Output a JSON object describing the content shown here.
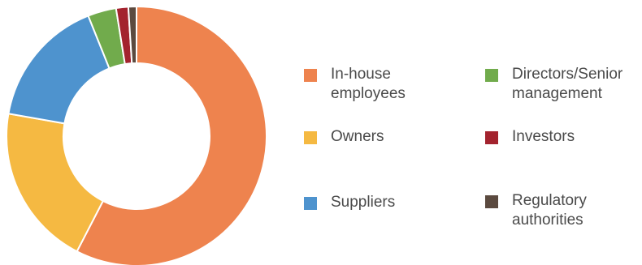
{
  "chart_data": {
    "type": "pie",
    "categories": [
      "In-house employees",
      "Owners",
      "Suppliers",
      "Directors/Senior management",
      "Investors",
      "Regulatory authorities"
    ],
    "values": [
      57,
      20,
      16,
      3.5,
      1.5,
      1
    ],
    "colors": [
      "#ee834e",
      "#f5b942",
      "#4e93ce",
      "#71ab4c",
      "#a3232e",
      "#5b4a3f"
    ],
    "labels": [
      "In-house\nemployees",
      "Owners",
      "Suppliers",
      "Directors/Senior\nmanagement",
      "Investors",
      "Regulatory\nauthorities"
    ],
    "title": "",
    "legend_placement": "right"
  }
}
